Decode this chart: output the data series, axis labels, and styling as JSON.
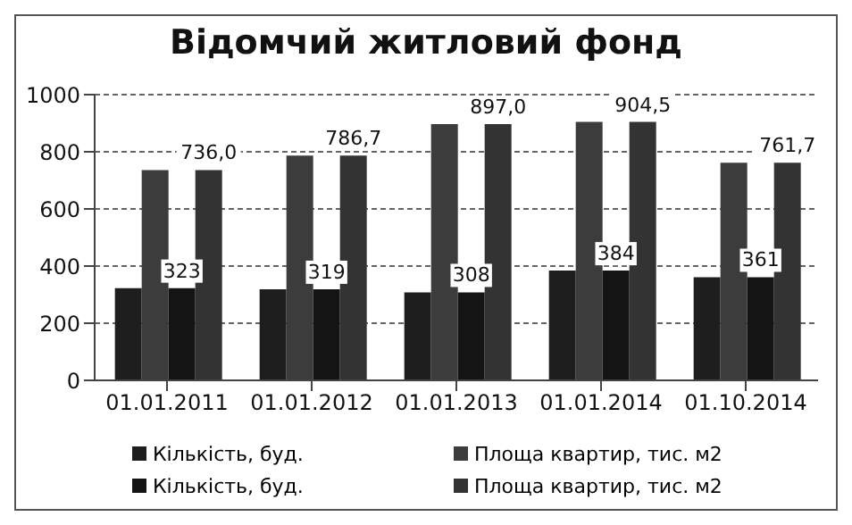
{
  "chart_data": {
    "type": "bar",
    "title": "Відомчий житловий фонд",
    "categories": [
      "01.01.2011",
      "01.01.2012",
      "01.01.2013",
      "01.01.2014",
      "01.10.2014"
    ],
    "series": [
      {
        "name": "Кількість, буд.",
        "color": "#1e1e1e",
        "values": [
          323,
          319,
          308,
          384,
          361
        ]
      },
      {
        "name": "Площа квартир, тис. м2",
        "color": "#3c3c3c",
        "values": [
          736.0,
          786.7,
          897.0,
          904.5,
          761.7
        ]
      },
      {
        "name": "Кількість, буд.",
        "color": "#141414",
        "values": [
          323,
          319,
          308,
          384,
          361
        ],
        "value_labels": [
          "323",
          "319",
          "308",
          "384",
          "361"
        ]
      },
      {
        "name": "Площа квартир, тис. м2",
        "color": "#333333",
        "values": [
          736.0,
          786.7,
          897.0,
          904.5,
          761.7
        ],
        "value_labels": [
          "736,0",
          "786,7",
          "897,0",
          "904,5",
          "761,7"
        ]
      }
    ],
    "ylim": [
      0,
      1000
    ],
    "yticks": [
      0,
      200,
      400,
      600,
      800,
      1000
    ],
    "grid": "y",
    "legend": "bottom"
  }
}
